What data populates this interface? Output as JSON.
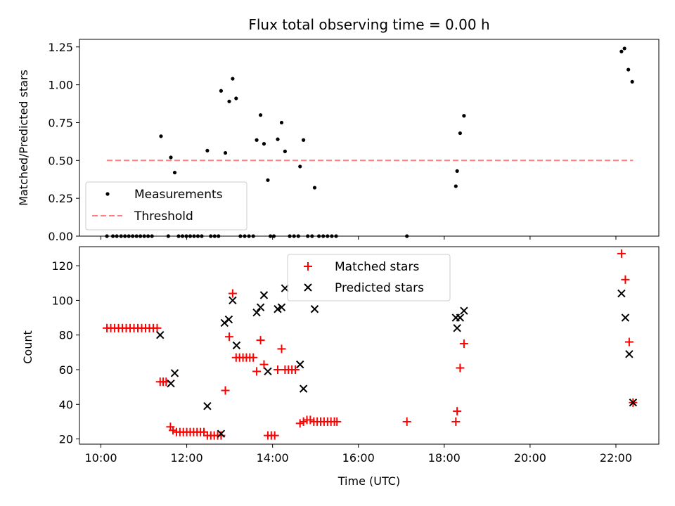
{
  "title": "Flux total observing time = 0.00 h",
  "colors": {
    "measurement": "#000000",
    "threshold": "#ff7f7f",
    "matched": "#ff0000",
    "predicted": "#000000"
  },
  "chart_data": [
    {
      "type": "scatter",
      "ylabel": "Matched/Predicted stars",
      "xlabel": "",
      "xlim": [
        9.5,
        23.0
      ],
      "ylim": [
        0,
        1.3
      ],
      "yticks": [
        0.0,
        0.25,
        0.5,
        0.75,
        1.0,
        1.25
      ],
      "ytick_labels": [
        "0.00",
        "0.25",
        "0.50",
        "0.75",
        "1.00",
        "1.25"
      ],
      "xticks": [
        10,
        12,
        14,
        16,
        18,
        20,
        22
      ],
      "legend_position": "lower-left",
      "series": [
        {
          "name": "Measurements",
          "marker": "dot",
          "points": [
            [
              10.14,
              0
            ],
            [
              10.28,
              0
            ],
            [
              10.37,
              0
            ],
            [
              10.47,
              0
            ],
            [
              10.56,
              0
            ],
            [
              10.65,
              0
            ],
            [
              10.74,
              0
            ],
            [
              10.83,
              0
            ],
            [
              10.92,
              0
            ],
            [
              11.01,
              0
            ],
            [
              11.1,
              0
            ],
            [
              11.19,
              0
            ],
            [
              11.4,
              0.66
            ],
            [
              11.57,
              0
            ],
            [
              11.63,
              0.52
            ],
            [
              11.72,
              0.42
            ],
            [
              11.81,
              0
            ],
            [
              11.9,
              0
            ],
            [
              11.99,
              0
            ],
            [
              12.08,
              0
            ],
            [
              12.17,
              0
            ],
            [
              12.26,
              0
            ],
            [
              12.35,
              0
            ],
            [
              12.48,
              0.565
            ],
            [
              12.56,
              0
            ],
            [
              12.65,
              0
            ],
            [
              12.74,
              0
            ],
            [
              12.8,
              0.96
            ],
            [
              12.9,
              0.55
            ],
            [
              12.99,
              0.89
            ],
            [
              13.07,
              1.04
            ],
            [
              13.15,
              0.91
            ],
            [
              13.25,
              0
            ],
            [
              13.35,
              0
            ],
            [
              13.45,
              0
            ],
            [
              13.55,
              0
            ],
            [
              13.63,
              0.635
            ],
            [
              13.72,
              0.8
            ],
            [
              13.8,
              0.61
            ],
            [
              13.89,
              0.37
            ],
            [
              13.95,
              0
            ],
            [
              14.03,
              0
            ],
            [
              14.12,
              0.64
            ],
            [
              14.21,
              0.75
            ],
            [
              14.29,
              0.56
            ],
            [
              14.4,
              0
            ],
            [
              14.5,
              0
            ],
            [
              14.6,
              0
            ],
            [
              14.64,
              0.46
            ],
            [
              14.72,
              0.635
            ],
            [
              14.82,
              0
            ],
            [
              14.92,
              0
            ],
            [
              14.98,
              0.32
            ],
            [
              15.08,
              0
            ],
            [
              15.18,
              0
            ],
            [
              15.28,
              0
            ],
            [
              15.38,
              0
            ],
            [
              15.48,
              0
            ],
            [
              17.13,
              0
            ],
            [
              18.27,
              0.33
            ],
            [
              18.3,
              0.43
            ],
            [
              18.37,
              0.68
            ],
            [
              18.46,
              0.795
            ],
            [
              22.13,
              1.22
            ],
            [
              22.2,
              1.24
            ],
            [
              22.29,
              1.1
            ],
            [
              22.38,
              1.02
            ]
          ]
        },
        {
          "name": "Threshold",
          "marker": "dashed-line",
          "points": [
            [
              10.14,
              0.5
            ],
            [
              22.4,
              0.5
            ]
          ]
        }
      ]
    },
    {
      "type": "scatter",
      "ylabel": "Count",
      "xlabel": "Time (UTC)",
      "xlim": [
        9.5,
        23.0
      ],
      "ylim": [
        17,
        131
      ],
      "yticks": [
        20,
        40,
        60,
        80,
        100,
        120
      ],
      "xticks": [
        10,
        12,
        14,
        16,
        18,
        20,
        22
      ],
      "xtick_labels": [
        "10:00",
        "12:00",
        "14:00",
        "16:00",
        "18:00",
        "20:00",
        "22:00"
      ],
      "legend_position": "top-center",
      "series": [
        {
          "name": "Matched stars",
          "marker": "plus",
          "points": [
            [
              10.14,
              84
            ],
            [
              10.23,
              84
            ],
            [
              10.32,
              84
            ],
            [
              10.41,
              84
            ],
            [
              10.5,
              84
            ],
            [
              10.59,
              84
            ],
            [
              10.68,
              84
            ],
            [
              10.77,
              84
            ],
            [
              10.86,
              84
            ],
            [
              10.95,
              84
            ],
            [
              11.04,
              84
            ],
            [
              11.13,
              84
            ],
            [
              11.22,
              84
            ],
            [
              11.31,
              84
            ],
            [
              11.38,
              53
            ],
            [
              11.45,
              53
            ],
            [
              11.52,
              53
            ],
            [
              11.62,
              27
            ],
            [
              11.68,
              25
            ],
            [
              11.76,
              24
            ],
            [
              11.84,
              24
            ],
            [
              11.92,
              24
            ],
            [
              12.0,
              24
            ],
            [
              12.08,
              24
            ],
            [
              12.16,
              24
            ],
            [
              12.24,
              24
            ],
            [
              12.32,
              24
            ],
            [
              12.4,
              24
            ],
            [
              12.48,
              22
            ],
            [
              12.56,
              22
            ],
            [
              12.64,
              22
            ],
            [
              12.72,
              22
            ],
            [
              12.8,
              22
            ],
            [
              12.9,
              48
            ],
            [
              12.99,
              79
            ],
            [
              13.07,
              104
            ],
            [
              13.15,
              67
            ],
            [
              13.23,
              67
            ],
            [
              13.31,
              67
            ],
            [
              13.39,
              67
            ],
            [
              13.47,
              67
            ],
            [
              13.55,
              67
            ],
            [
              13.63,
              59
            ],
            [
              13.72,
              77
            ],
            [
              13.8,
              63
            ],
            [
              13.89,
              22
            ],
            [
              13.97,
              22
            ],
            [
              14.05,
              22
            ],
            [
              14.12,
              60
            ],
            [
              14.21,
              72
            ],
            [
              14.29,
              60
            ],
            [
              14.37,
              60
            ],
            [
              14.45,
              60
            ],
            [
              14.53,
              60
            ],
            [
              14.64,
              29
            ],
            [
              14.72,
              30
            ],
            [
              14.8,
              31
            ],
            [
              14.88,
              31
            ],
            [
              14.96,
              30
            ],
            [
              15.04,
              30
            ],
            [
              15.12,
              30
            ],
            [
              15.2,
              30
            ],
            [
              15.28,
              30
            ],
            [
              15.36,
              30
            ],
            [
              15.44,
              30
            ],
            [
              15.5,
              30
            ],
            [
              17.13,
              30
            ],
            [
              18.27,
              30
            ],
            [
              18.3,
              36
            ],
            [
              18.37,
              61
            ],
            [
              18.46,
              75
            ],
            [
              22.13,
              127
            ],
            [
              22.22,
              112
            ],
            [
              22.31,
              76
            ],
            [
              22.4,
              41
            ]
          ]
        },
        {
          "name": "Predicted stars",
          "marker": "cross",
          "points": [
            [
              11.38,
              80
            ],
            [
              11.63,
              52
            ],
            [
              11.72,
              58
            ],
            [
              12.48,
              39
            ],
            [
              12.8,
              23
            ],
            [
              12.88,
              87
            ],
            [
              12.98,
              89
            ],
            [
              13.07,
              100
            ],
            [
              13.16,
              74
            ],
            [
              13.63,
              93
            ],
            [
              13.72,
              96
            ],
            [
              13.8,
              103
            ],
            [
              13.89,
              59
            ],
            [
              14.12,
              95
            ],
            [
              14.21,
              96
            ],
            [
              14.29,
              107
            ],
            [
              14.64,
              63
            ],
            [
              14.72,
              49
            ],
            [
              14.98,
              95
            ],
            [
              18.27,
              90
            ],
            [
              18.3,
              84
            ],
            [
              18.37,
              90
            ],
            [
              18.46,
              94
            ],
            [
              22.13,
              104
            ],
            [
              22.22,
              90
            ],
            [
              22.31,
              69
            ],
            [
              22.4,
              41
            ]
          ]
        }
      ]
    }
  ]
}
